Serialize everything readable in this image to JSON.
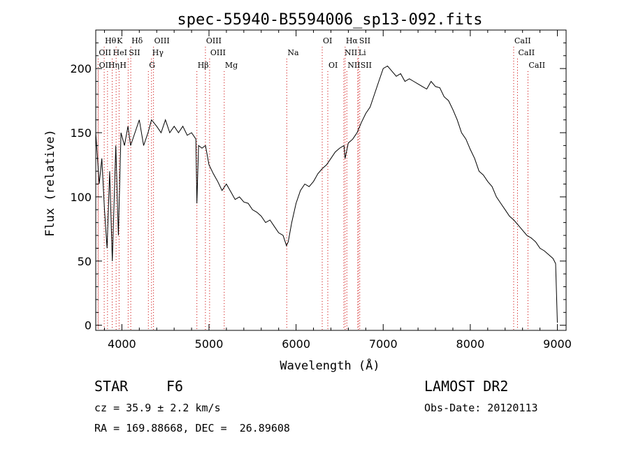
{
  "chart_data": {
    "type": "line",
    "title": "spec-55940-B5594006_sp13-092.fits",
    "xlabel": "Wavelength (Å)",
    "ylabel": "Flux (relative)",
    "xlim": [
      3700,
      9100
    ],
    "ylim": [
      -4,
      230
    ],
    "xticks": [
      4000,
      5000,
      6000,
      7000,
      8000,
      9000
    ],
    "yticks": [
      0,
      50,
      100,
      150,
      200
    ],
    "grid": false,
    "legend": "none",
    "line_color": "#000000",
    "marker_color": "#cc0000",
    "series": [
      {
        "x": [
          3700,
          3740,
          3770,
          3800,
          3830,
          3860,
          3890,
          3930,
          3960,
          3990,
          4030,
          4070,
          4100,
          4150,
          4200,
          4250,
          4300,
          4340,
          4400,
          4450,
          4500,
          4550,
          4600,
          4650,
          4700,
          4750,
          4800,
          4850,
          4861,
          4880,
          4920,
          4960,
          5000,
          5050,
          5100,
          5150,
          5200,
          5250,
          5300,
          5350,
          5400,
          5450,
          5500,
          5550,
          5600,
          5650,
          5700,
          5750,
          5800,
          5850,
          5890,
          5910,
          5950,
          6000,
          6050,
          6100,
          6150,
          6200,
          6250,
          6300,
          6350,
          6400,
          6450,
          6500,
          6550,
          6563,
          6600,
          6650,
          6700,
          6750,
          6800,
          6850,
          6900,
          6950,
          7000,
          7050,
          7100,
          7150,
          7200,
          7250,
          7300,
          7350,
          7400,
          7450,
          7500,
          7550,
          7600,
          7650,
          7700,
          7750,
          7800,
          7850,
          7900,
          7950,
          8000,
          8050,
          8100,
          8150,
          8200,
          8250,
          8300,
          8350,
          8400,
          8450,
          8500,
          8550,
          8600,
          8650,
          8700,
          8750,
          8800,
          8850,
          8900,
          8950,
          8980,
          9000
        ],
        "y": [
          150,
          110,
          130,
          90,
          60,
          120,
          50,
          140,
          70,
          150,
          140,
          155,
          140,
          150,
          160,
          140,
          150,
          160,
          155,
          150,
          160,
          150,
          155,
          150,
          155,
          148,
          150,
          145,
          95,
          140,
          138,
          140,
          125,
          118,
          112,
          105,
          110,
          104,
          98,
          100,
          96,
          95,
          90,
          88,
          85,
          80,
          82,
          77,
          72,
          70,
          62,
          65,
          80,
          95,
          105,
          110,
          108,
          112,
          118,
          122,
          125,
          130,
          135,
          138,
          140,
          130,
          142,
          145,
          150,
          158,
          165,
          170,
          180,
          190,
          200,
          202,
          198,
          194,
          196,
          190,
          192,
          190,
          188,
          186,
          184,
          190,
          186,
          185,
          178,
          175,
          168,
          160,
          150,
          145,
          137,
          130,
          120,
          117,
          112,
          108,
          100,
          95,
          90,
          85,
          82,
          78,
          74,
          70,
          68,
          65,
          60,
          58,
          55,
          52,
          48,
          2
        ]
      }
    ],
    "line_markers": [
      {
        "name": "Hθ",
        "wl": 3797,
        "row": 1,
        "side": "right"
      },
      {
        "name": "K",
        "wl": 3934,
        "row": 1,
        "side": "right"
      },
      {
        "name": "Hδ",
        "wl": 4102,
        "row": 1,
        "side": "right"
      },
      {
        "name": "OIII",
        "wl": 4363,
        "row": 1,
        "side": "right"
      },
      {
        "name": "OIII",
        "wl": 4959,
        "row": 1,
        "side": "right"
      },
      {
        "name": "OI",
        "wl": 6300,
        "row": 1,
        "side": "right"
      },
      {
        "name": "Hα",
        "wl": 6563,
        "row": 1,
        "side": "right"
      },
      {
        "name": "SII",
        "wl": 6716,
        "row": 1,
        "side": "right"
      },
      {
        "name": "CaII",
        "wl": 8498,
        "row": 1,
        "side": "right"
      },
      {
        "name": "OII",
        "wl": 3727,
        "row": 2,
        "side": "right"
      },
      {
        "name": "HeI",
        "wl": 3889,
        "row": 2,
        "side": "right"
      },
      {
        "name": "SII",
        "wl": 4072,
        "row": 2,
        "side": "right"
      },
      {
        "name": "Hγ",
        "wl": 4340,
        "row": 2,
        "side": "right"
      },
      {
        "name": "OIII",
        "wl": 5007,
        "row": 2,
        "side": "right"
      },
      {
        "name": "Na",
        "wl": 5893,
        "row": 2,
        "side": "right"
      },
      {
        "name": "NII",
        "wl": 6548,
        "row": 2,
        "side": "right"
      },
      {
        "name": "Li",
        "wl": 6708,
        "row": 2,
        "side": "right"
      },
      {
        "name": "CaII",
        "wl": 8542,
        "row": 2,
        "side": "right"
      },
      {
        "name": "OII",
        "wl": 3729,
        "row": 3,
        "side": "right"
      },
      {
        "name": "Hη",
        "wl": 3835,
        "row": 3,
        "side": "right"
      },
      {
        "name": "H",
        "wl": 3968,
        "row": 3,
        "side": "right"
      },
      {
        "name": "G",
        "wl": 4304,
        "row": 3,
        "side": "right"
      },
      {
        "name": "Hβ",
        "wl": 4861,
        "row": 3,
        "side": "right"
      },
      {
        "name": "Mg",
        "wl": 5175,
        "row": 3,
        "side": "right"
      },
      {
        "name": "OI",
        "wl": 6364,
        "row": 3,
        "side": "right"
      },
      {
        "name": "NII",
        "wl": 6583,
        "row": 3,
        "side": "right"
      },
      {
        "name": "SII",
        "wl": 6731,
        "row": 3,
        "side": "right"
      },
      {
        "name": "CaII",
        "wl": 8662,
        "row": 3,
        "side": "right"
      }
    ]
  },
  "info": {
    "class": "STAR",
    "subclass": "F6",
    "survey": "LAMOST DR2",
    "cz": "cz = 35.9 ± 2.2 km/s",
    "obs_date": "Obs-Date: 20120113",
    "coords": "RA = 169.88668, DEC =  26.89608"
  }
}
